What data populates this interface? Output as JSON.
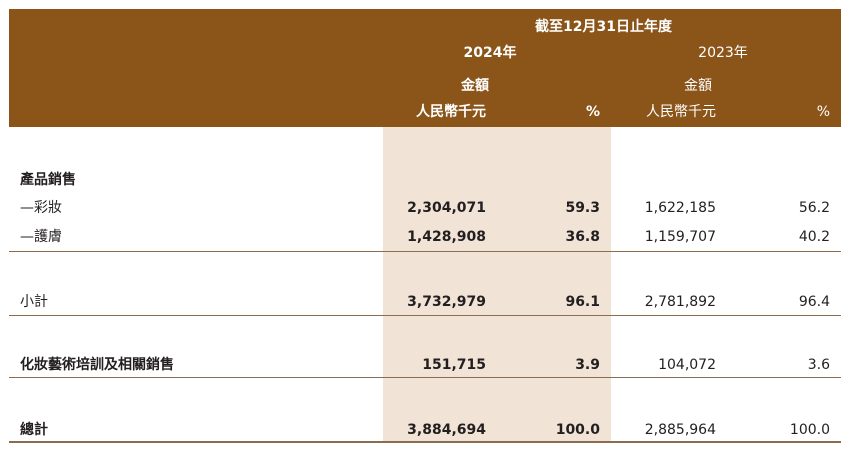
{
  "header": {
    "period": "截至12月31日止年度",
    "year_2024": "2024年",
    "year_2023": "2023年",
    "amount_2024": "金額",
    "amount_2023": "金額",
    "unit_2024": "人民幣千元",
    "unit_2023": "人民幣千元",
    "pct_2024": "%",
    "pct_2023": "%"
  },
  "section_title": "產品銷售",
  "rows": [
    {
      "label": "—彩妝",
      "v2024": "2,304,071",
      "p2024": "59.3",
      "v2023": "1,622,185",
      "p2023": "56.2"
    },
    {
      "label": "—護膚",
      "v2024": "1,428,908",
      "p2024": "36.8",
      "v2023": "1,159,707",
      "p2023": "40.2"
    }
  ],
  "subtotal": {
    "label": "小計",
    "v2024": "3,732,979",
    "p2024": "96.1",
    "v2023": "2,781,892",
    "p2023": "96.4"
  },
  "training": {
    "label": "化妝藝術培訓及相關銷售",
    "v2024": "151,715",
    "p2024": "3.9",
    "v2023": "104,072",
    "p2023": "3.6"
  },
  "total": {
    "label": "總計",
    "v2024": "3,884,694",
    "p2024": "100.0",
    "v2023": "2,885,964",
    "p2023": "100.0"
  },
  "colors": {
    "header_bg": "#8b5419",
    "highlight_col": "#f1e3d6",
    "rule": "#8a6d4f"
  }
}
